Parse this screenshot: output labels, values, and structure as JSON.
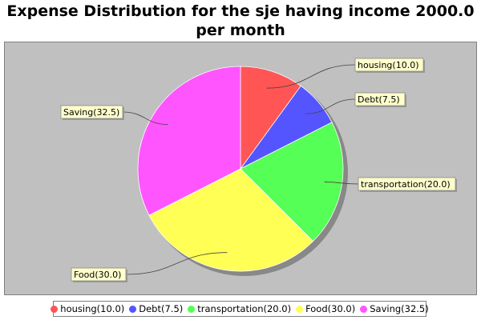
{
  "title": "Expense Distribution for the sje having income 2000.0 per month",
  "chart_data": {
    "type": "pie",
    "slices": [
      {
        "name": "housing",
        "value": 10.0,
        "label": "housing(10.0)",
        "color": "#ff5555"
      },
      {
        "name": "Debt",
        "value": 7.5,
        "label": "Debt(7.5)",
        "color": "#5555ff"
      },
      {
        "name": "transportation",
        "value": 20.0,
        "label": "transportation(20.0)",
        "color": "#55ff55"
      },
      {
        "name": "Food",
        "value": 30.0,
        "label": "Food(30.0)",
        "color": "#ffff55"
      },
      {
        "name": "Saving",
        "value": 32.5,
        "label": "Saving(32.5)",
        "color": "#ff55ff"
      }
    ],
    "start": "12 o'clock",
    "direction": "clockwise",
    "legend": "bottom",
    "plot_background": "#c0c0c0"
  }
}
